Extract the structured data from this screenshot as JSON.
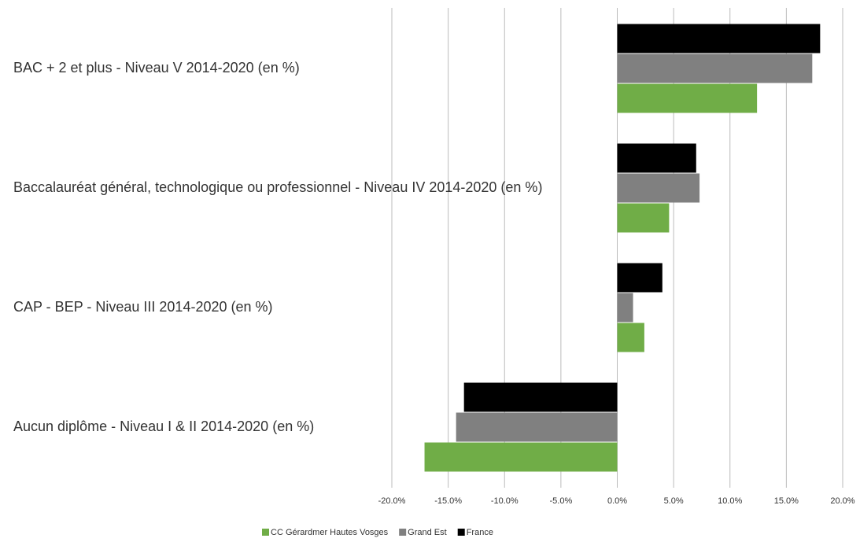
{
  "chart_data": {
    "type": "hbar",
    "categories": [
      "BAC + 2 et plus - Niveau V 2014-2020 (en %)",
      "Baccalauréat général, technologique ou professionnel - Niveau IV 2014-2020 (en %)",
      "CAP - BEP - Niveau III 2014-2020 (en %)",
      "Aucun diplôme - Niveau I & II 2014-2020 (en %)"
    ],
    "series": [
      {
        "name": "CC Gérardmer Hautes Vosges",
        "color": "#70ad47",
        "values": [
          12.4,
          4.6,
          2.4,
          -17.1
        ]
      },
      {
        "name": "Grand Est",
        "color": "#808080",
        "values": [
          17.3,
          7.3,
          1.4,
          -14.3
        ]
      },
      {
        "name": "France",
        "color": "#000000",
        "values": [
          18.0,
          7.0,
          4.0,
          -13.6
        ]
      }
    ],
    "xlim": [
      -20,
      20
    ],
    "xticks": [
      {
        "value": -20,
        "label": "-20.0%"
      },
      {
        "value": -15,
        "label": "-15.0%"
      },
      {
        "value": -10,
        "label": "-10.0%"
      },
      {
        "value": -5,
        "label": "-5.0%"
      },
      {
        "value": 0,
        "label": "0.0%"
      },
      {
        "value": 5,
        "label": "5.0%"
      },
      {
        "value": 10,
        "label": "10.0%"
      },
      {
        "value": 15,
        "label": "15.0%"
      },
      {
        "value": 20,
        "label": "20.0%"
      }
    ],
    "grid": true,
    "legend": "bottom"
  }
}
